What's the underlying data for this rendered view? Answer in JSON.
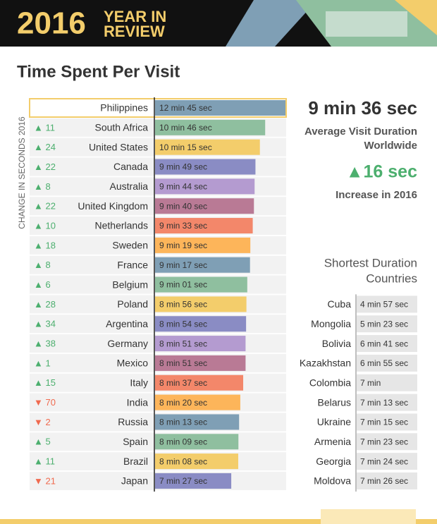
{
  "header": {
    "year": "2016",
    "line1": "YEAR IN",
    "line2": "REVIEW"
  },
  "chart_data": {
    "type": "bar",
    "orientation": "horizontal",
    "title": "Time Spent Per Visit",
    "change_axis_label": "CHANGE IN SECONDS 2016",
    "highlighted_category": "Philippines",
    "categories": [
      "Philippines",
      "South Africa",
      "United States",
      "Canada",
      "Australia",
      "United Kingdom",
      "Netherlands",
      "Sweden",
      "France",
      "Belgium",
      "Poland",
      "Argentina",
      "Germany",
      "Mexico",
      "Italy",
      "India",
      "Russia",
      "Spain",
      "Brazil",
      "Japan"
    ],
    "values": [
      765,
      646,
      615,
      589,
      584,
      580,
      573,
      559,
      557,
      541,
      536,
      534,
      531,
      531,
      517,
      500,
      493,
      489,
      488,
      447
    ],
    "value_labels": [
      "12 min 45 sec",
      "10 min 46 sec",
      "10 min 15 sec",
      "9 min 49 sec",
      "9 min 44 sec",
      "9 min 40 sec",
      "9 min 33 sec",
      "9 min 19 sec",
      "9 min 17 sec",
      "9 min 01 sec",
      "8 min 56 sec",
      "8 min 54 sec",
      "8 min 51 sec",
      "8 min 51 sec",
      "8 min 37 sec",
      "8 min 20 sec",
      "8 min 13 sec",
      "8 min 09 sec",
      "8 min 08 sec",
      "7 min 27 sec"
    ],
    "palette": [
      "#7f9fb5",
      "#8fbf9f",
      "#f3cd6b",
      "#8a8cc4",
      "#b49bd0",
      "#b97a95",
      "#f3876a",
      "#fdb55a"
    ],
    "change": {
      "values": [
        null,
        11,
        24,
        22,
        8,
        22,
        10,
        18,
        8,
        6,
        28,
        34,
        38,
        1,
        15,
        -70,
        -2,
        5,
        11,
        -21
      ],
      "value_labels": [
        null,
        "▲ 11",
        "▲ 24",
        "▲ 22",
        "▲ 8",
        "▲ 22",
        "▲ 10",
        "▲ 18",
        "▲ 8",
        "▲ 6",
        "▲ 28",
        "▲ 34",
        "▲ 38",
        "▲ 1",
        "▲ 15",
        "▼ 70",
        "▼ 2",
        "▲ 5",
        "▲ 11",
        "▼ 21"
      ],
      "up_color": "#4caf6e",
      "down_color": "#f06a4f"
    }
  },
  "stats": {
    "average": "9 min 36 sec",
    "average_lines": [
      "Average Visit Duration",
      "Worldwide"
    ],
    "increase": "▲16 sec",
    "increase_label": "Increase in 2016"
  },
  "shortest": {
    "title_lines": [
      "Shortest Duration",
      "Countries"
    ],
    "rows": [
      [
        "Cuba",
        "4 min 57 sec"
      ],
      [
        "Mongolia",
        "5 min 23 sec"
      ],
      [
        "Bolivia",
        "6 min 41 sec"
      ],
      [
        "Kazakhstan",
        "6 min 55 sec"
      ],
      [
        "Colombia",
        "7 min"
      ],
      [
        "Belarus",
        "7 min 13 sec"
      ],
      [
        "Ukraine",
        "7 min 15 sec"
      ],
      [
        "Armenia",
        "7 min 23 sec"
      ],
      [
        "Georgia",
        "7 min 24 sec"
      ],
      [
        "Moldova",
        "7 min 26 sec"
      ]
    ]
  }
}
